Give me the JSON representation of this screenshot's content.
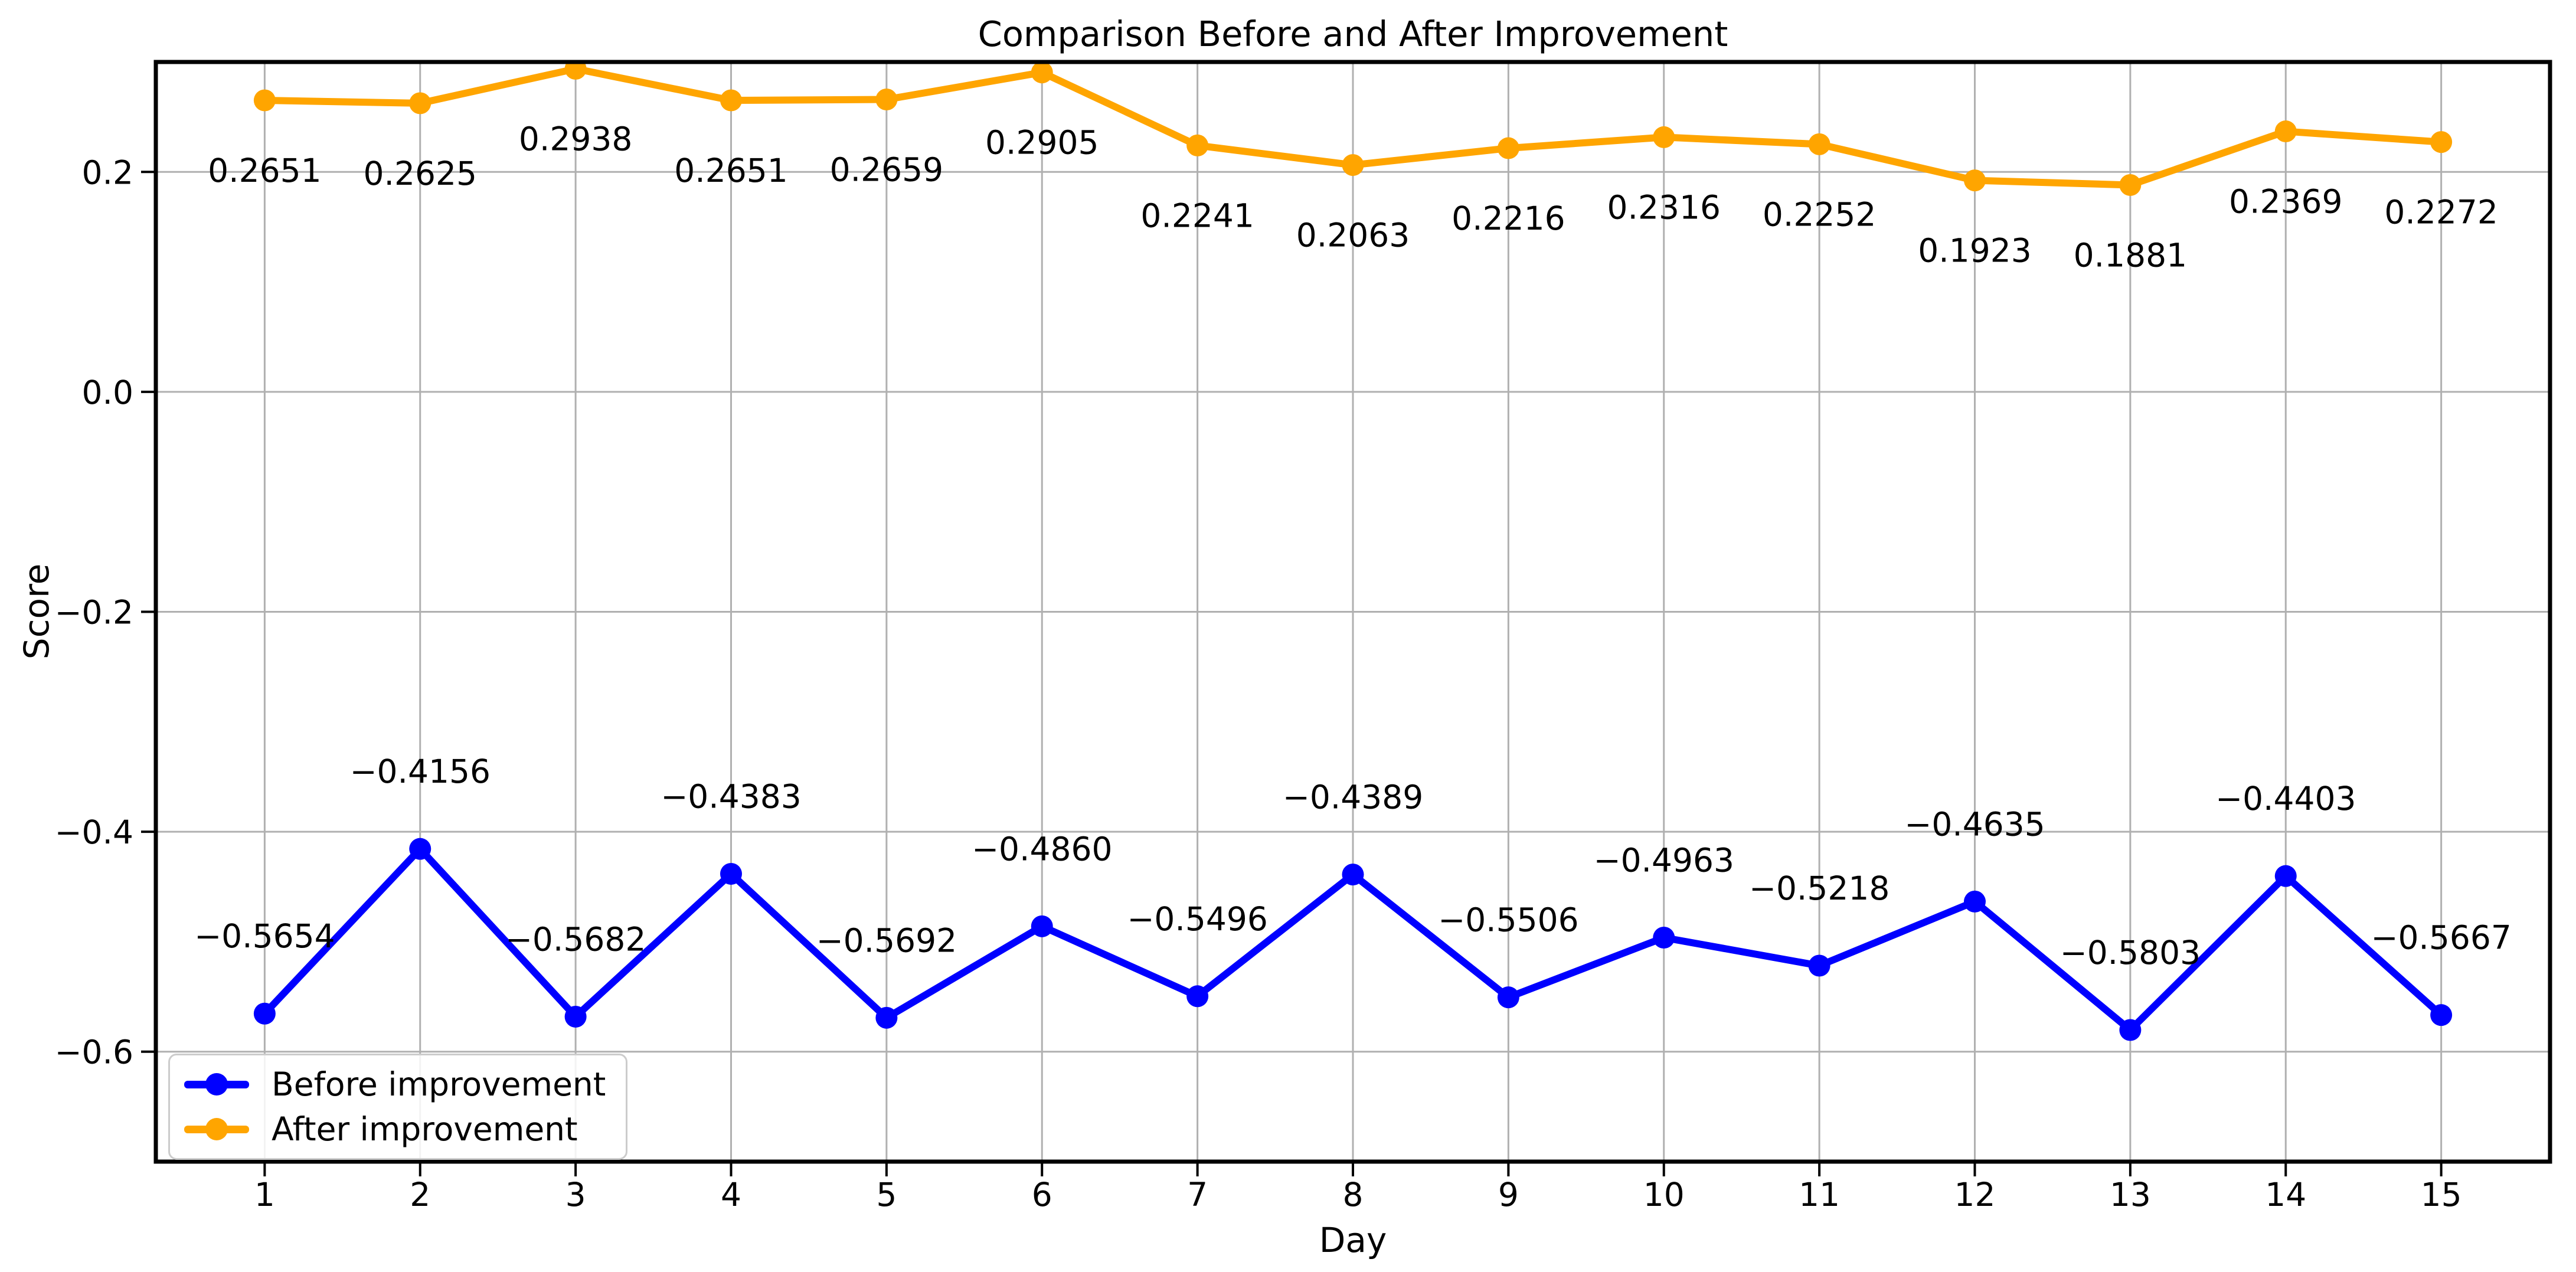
{
  "figure": {
    "background_color": "#ffffff",
    "spine_color": "#000000",
    "grid_color": "#b0b0b0",
    "text_color": "#000000"
  },
  "chart_data": {
    "type": "line",
    "title": "Comparison Before and After Improvement",
    "xlabel": "Day",
    "ylabel": "Score",
    "x": [
      1,
      2,
      3,
      4,
      5,
      6,
      7,
      8,
      9,
      10,
      11,
      12,
      13,
      14,
      15
    ],
    "series": [
      {
        "name": "Before improvement",
        "color": "#0000ff",
        "label_position": "above",
        "values": [
          -0.5654,
          -0.4156,
          -0.5682,
          -0.4383,
          -0.5692,
          -0.486,
          -0.5496,
          -0.4389,
          -0.5506,
          -0.4963,
          -0.5218,
          -0.4635,
          -0.5803,
          -0.4403,
          -0.5667
        ]
      },
      {
        "name": "After improvement",
        "color": "#ffa500",
        "label_position": "below",
        "values": [
          0.2651,
          0.2625,
          0.2938,
          0.2651,
          0.2659,
          0.2905,
          0.2241,
          0.2063,
          0.2216,
          0.2316,
          0.2252,
          0.1923,
          0.1881,
          0.2369,
          0.2272
        ]
      }
    ],
    "xticks": [
      1,
      2,
      3,
      4,
      5,
      6,
      7,
      8,
      9,
      10,
      11,
      12,
      13,
      14,
      15
    ],
    "yticks": [
      0.2,
      0.0,
      -0.2,
      -0.4,
      -0.6
    ],
    "xlim": [
      0.3,
      15.7
    ],
    "ylim": [
      -0.7,
      0.3
    ],
    "grid": true,
    "legend_position": "lower left",
    "value_label_decimals": 4,
    "ytick_decimals": 1
  }
}
